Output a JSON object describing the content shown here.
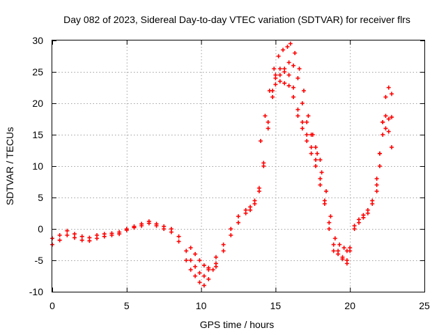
{
  "chart_data": {
    "type": "scatter",
    "title": "Day 082 of 2023, Sidereal Day-to-day VTEC variation (SDTVAR) for receiver flrs",
    "xlabel": "GPS time / hours",
    "ylabel": "SDTVAR / TECUs",
    "xlim": [
      0,
      25
    ],
    "ylim": [
      -10,
      30
    ],
    "xticks": [
      0,
      5,
      10,
      15,
      20,
      25
    ],
    "yticks": [
      -10,
      -5,
      0,
      5,
      10,
      15,
      20,
      25,
      30
    ],
    "grid": true,
    "marker": "+",
    "color": "#ff0000",
    "series": [
      {
        "name": "track-1",
        "x": [
          0.0,
          0.5,
          1.0,
          1.5,
          2.0,
          2.5,
          3.0,
          3.5,
          4.0,
          4.5,
          5.0,
          5.5,
          6.0,
          6.5,
          7.0,
          7.5,
          8.0,
          8.5,
          9.0,
          9.3,
          9.6,
          9.9,
          10.2,
          10.5,
          11.0,
          11.5,
          12.0,
          12.5,
          13.0,
          13.3,
          13.6,
          13.9,
          14.2,
          14.5,
          14.8,
          15.0,
          15.3,
          15.6,
          15.9,
          16.2,
          16.5,
          16.8,
          17.1,
          17.4,
          17.7,
          18.0,
          18.3,
          18.6,
          18.9,
          19.2,
          19.5,
          19.8,
          20.0,
          20.3,
          20.6,
          20.9,
          21.2,
          21.5,
          21.8,
          22.0,
          22.2,
          22.4,
          22.6,
          22.8
        ],
        "y": [
          -1.5,
          -1.0,
          -0.3,
          -0.8,
          -1.2,
          -1.4,
          -1.0,
          -0.8,
          -0.7,
          -0.5,
          0.0,
          0.4,
          0.8,
          1.2,
          0.8,
          0.4,
          0.0,
          -1.2,
          -3.5,
          -5.0,
          -6.0,
          -7.0,
          -7.5,
          -6.5,
          -4.5,
          -2.5,
          0.0,
          2.0,
          3.0,
          3.5,
          4.5,
          6.5,
          10.0,
          16.0,
          21.0,
          23.0,
          23.5,
          23.2,
          22.8,
          21.0,
          18.0,
          16.0,
          14.0,
          12.0,
          10.0,
          7.0,
          4.0,
          0.0,
          -3.5,
          -4.0,
          -4.8,
          -5.0,
          -3.0,
          0.5,
          1.5,
          2.2,
          3.0,
          4.5,
          7.0,
          12.0,
          17.0,
          18.0,
          17.5,
          17.8
        ]
      },
      {
        "name": "track-2",
        "x": [
          0.0,
          0.5,
          1.0,
          1.5,
          2.0,
          2.5,
          3.0,
          3.5,
          4.0,
          4.5,
          5.0,
          5.5,
          6.0,
          6.5,
          7.0,
          7.5,
          8.0,
          8.5,
          9.0,
          9.3,
          9.6,
          9.9,
          10.2,
          10.5,
          11.0,
          11.5,
          12.0,
          12.5,
          13.0,
          13.3,
          13.6,
          13.9,
          14.2,
          14.5,
          14.8,
          15.0,
          15.3,
          15.6,
          15.9,
          16.2,
          16.5,
          16.8,
          17.1,
          17.4,
          17.7,
          18.0,
          18.3,
          18.6,
          18.9,
          19.2,
          19.5,
          19.8,
          20.0,
          20.3,
          20.6,
          20.9,
          21.2,
          21.5,
          21.8,
          22.0,
          22.2,
          22.4,
          22.6,
          22.8
        ],
        "y": [
          -2.5,
          -1.8,
          -1.0,
          -1.4,
          -1.8,
          -1.9,
          -1.5,
          -1.2,
          -1.0,
          -0.8,
          -0.2,
          0.2,
          0.5,
          0.9,
          0.5,
          0.0,
          -0.5,
          -2.0,
          -5.0,
          -6.5,
          -7.5,
          -8.5,
          -9.0,
          -8.0,
          -6.0,
          -3.5,
          -1.0,
          1.0,
          2.5,
          3.0,
          4.0,
          6.0,
          10.5,
          17.0,
          22.0,
          24.5,
          25.5,
          25.0,
          24.5,
          22.5,
          19.0,
          17.0,
          15.0,
          13.0,
          11.0,
          8.0,
          4.5,
          1.0,
          -2.5,
          -3.5,
          -4.5,
          -5.5,
          -3.5,
          0.0,
          1.0,
          1.8,
          2.5,
          4.0,
          6.0,
          10.0,
          15.0,
          16.0,
          15.5,
          13.0
        ]
      },
      {
        "name": "track-3",
        "x": [
          9.3,
          9.6,
          9.9,
          10.2,
          10.5,
          10.8,
          11.0,
          14.0,
          14.3,
          14.6,
          14.9,
          15.2,
          15.5,
          15.8,
          16.0,
          16.3,
          16.6,
          16.9,
          17.2,
          17.5,
          17.8,
          18.1,
          18.4,
          18.7,
          19.0,
          19.3,
          19.6,
          19.8,
          21.8,
          22.0,
          22.2,
          22.4,
          22.6,
          22.8
        ],
        "y": [
          -3.0,
          -4.0,
          -5.0,
          -5.8,
          -6.2,
          -6.5,
          -5.5,
          14.0,
          18.0,
          22.0,
          25.5,
          27.5,
          28.5,
          29.0,
          29.5,
          28.0,
          25.5,
          22.0,
          18.0,
          15.0,
          12.0,
          9.0,
          6.0,
          2.0,
          -1.5,
          -2.5,
          -3.0,
          -3.5,
          8.0,
          12.0,
          17.0,
          21.0,
          22.5,
          21.5
        ]
      },
      {
        "name": "track-4",
        "x": [
          15.0,
          15.3,
          15.6,
          15.9,
          16.2,
          16.5,
          16.8,
          17.1,
          17.4,
          17.7,
          18.0
        ],
        "y": [
          24.0,
          24.5,
          25.5,
          26.5,
          26.0,
          24.0,
          20.0,
          17.0,
          15.0,
          13.0,
          11.0
        ]
      }
    ]
  }
}
